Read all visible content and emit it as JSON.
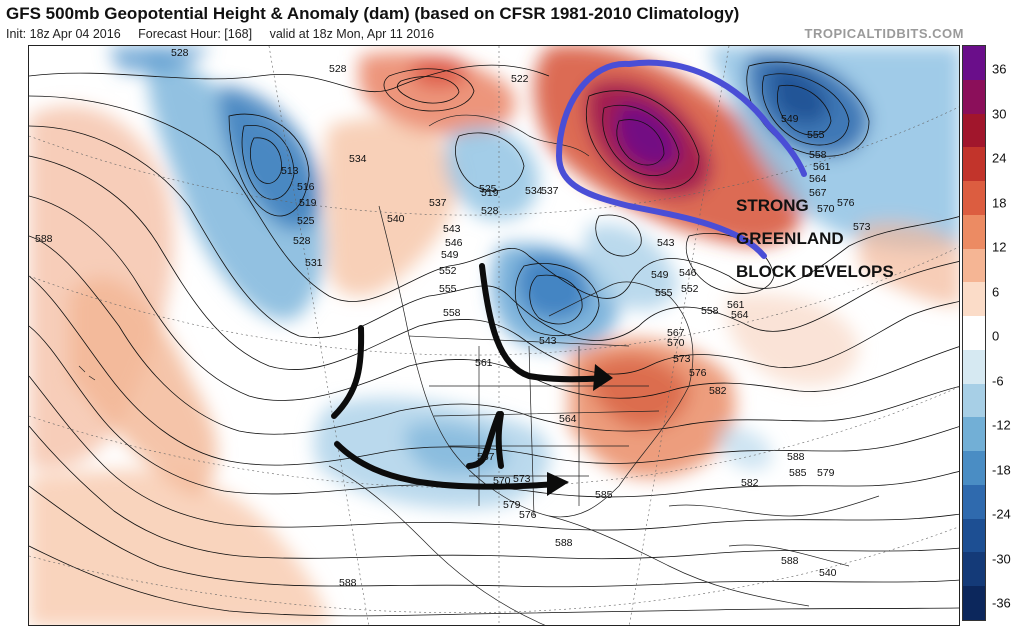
{
  "header": {
    "title": "GFS 500mb Geopotential Height & Anomaly (dam) (based on CFSR 1981-2010 Climatology)",
    "init": "Init: 18z Apr 04 2016",
    "forecast_hour": "Forecast Hour: [168]",
    "valid": "valid at 18z Mon, Apr 11 2016",
    "source": "TROPICALTIDBITS.COM"
  },
  "annotation": {
    "line1": "STRONG",
    "line2": "GREENLAND",
    "line3": "BLOCK DEVELOPS"
  },
  "colorbar": {
    "labels": [
      "36",
      "30",
      "24",
      "18",
      "12",
      "6",
      "0",
      "-6",
      "-12",
      "-18",
      "-24",
      "-30",
      "-36"
    ],
    "colors": [
      "#6a0e8a",
      "#8b0f5a",
      "#a1162c",
      "#c2342b",
      "#dc5d40",
      "#ec8b63",
      "#f5b594",
      "#fbdcc8",
      "#ffffff",
      "#d6e9f2",
      "#a7cfe6",
      "#72afd6",
      "#4a8dc4",
      "#2f6aae",
      "#1d4f93",
      "#143a78",
      "#0c275c"
    ]
  },
  "contour_labels": [
    "528",
    "528",
    "522",
    "513",
    "516",
    "519",
    "525",
    "528",
    "531",
    "534",
    "537",
    "540",
    "543",
    "546",
    "549",
    "552",
    "555",
    "558",
    "561",
    "564",
    "567",
    "570",
    "573",
    "576",
    "579",
    "582",
    "585",
    "588",
    "519",
    "525",
    "528",
    "534",
    "537",
    "543",
    "546",
    "549",
    "552",
    "555",
    "558",
    "561",
    "564",
    "567",
    "570",
    "573",
    "576",
    "579",
    "582",
    "585",
    "588",
    "588",
    "588",
    "588",
    "540",
    "543",
    "549",
    "555",
    "558",
    "561",
    "564",
    "567",
    "570",
    "573",
    "576"
  ]
}
